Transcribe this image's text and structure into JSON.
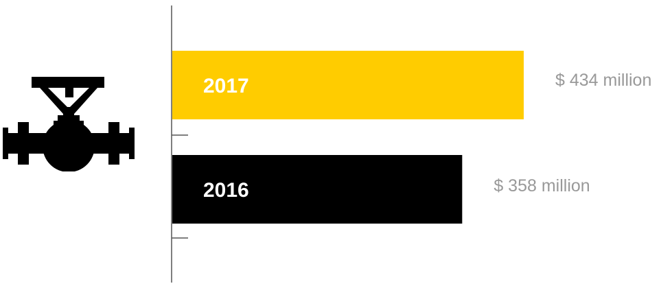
{
  "icon": "pipeline-valve-icon",
  "colors": {
    "axis": "#555555",
    "value_text": "#999999",
    "bar_label_on_yellow": "#ffffff",
    "bar_label_on_black": "#ffffff",
    "icon": "#000000"
  },
  "chart_data": {
    "type": "bar",
    "orientation": "horizontal",
    "categories": [
      "2017",
      "2016"
    ],
    "values": [
      434,
      358
    ],
    "value_labels": [
      "$ 434 million",
      "$ 358 million"
    ],
    "bar_colors": [
      "#FFCC00",
      "#000000"
    ],
    "title": "",
    "xlabel": "",
    "ylabel": "",
    "grid": false,
    "legend": "none"
  }
}
